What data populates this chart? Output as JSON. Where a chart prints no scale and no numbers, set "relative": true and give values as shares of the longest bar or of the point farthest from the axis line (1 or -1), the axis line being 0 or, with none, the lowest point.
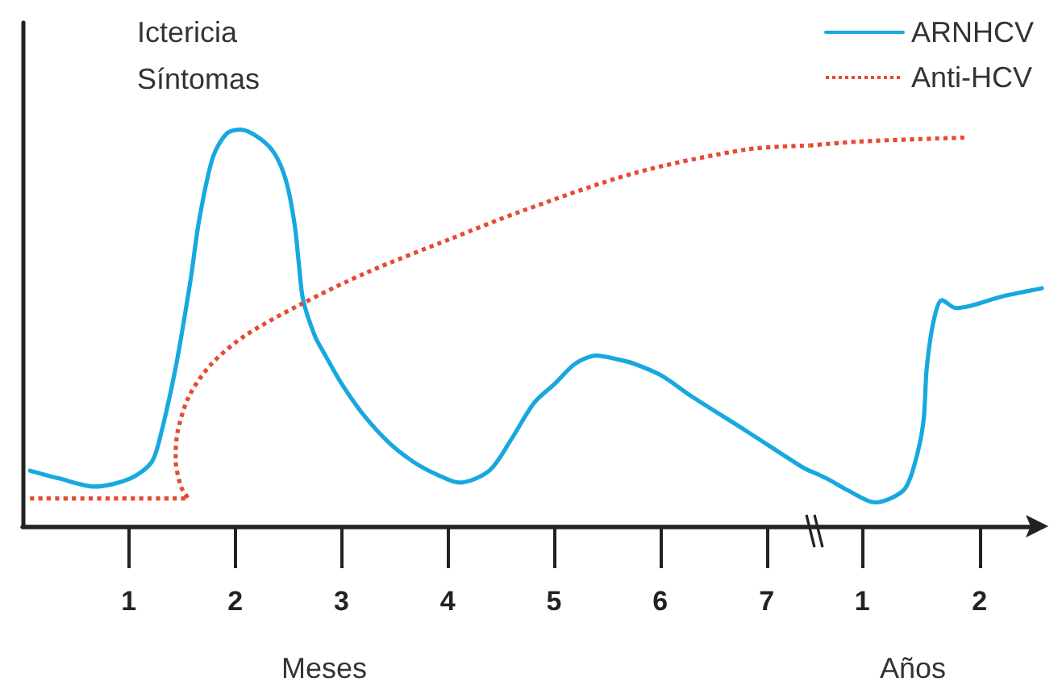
{
  "chart_data": {
    "type": "line",
    "relative": true,
    "tick_labels": "x",
    "marker": "none",
    "legend": "top right",
    "xlabel": "Meses",
    "x2label": "Años",
    "annotations": [
      "Ictericia",
      "Síntomas"
    ],
    "xlim": [
      0,
      9.59
    ],
    "xticks": [
      1,
      2,
      3,
      4,
      5,
      6,
      7
    ],
    "x2lim": [
      -6.15,
      2.53
    ],
    "x2ticks": [
      1,
      2
    ],
    "series": [
      {
        "name": "ARNHCV",
        "color": "#18a8e0",
        "line_style": "solid",
        "x": [
          0.07,
          0.35,
          0.68,
          1.01,
          1.21,
          1.29,
          1.44,
          1.58,
          1.66,
          1.79,
          1.92,
          2.05,
          2.22,
          2.37,
          2.48,
          2.56,
          2.6,
          2.64,
          2.75,
          2.85,
          3.0,
          3.21,
          3.45,
          3.69,
          3.9,
          4.11,
          4.39,
          4.6,
          4.81,
          5.01,
          5.2,
          5.4,
          5.61,
          5.75,
          6.01,
          6.28,
          6.81,
          7.33,
          7.4
        ],
        "values": [
          0.14,
          0.12,
          0.1,
          0.12,
          0.16,
          0.22,
          0.4,
          0.62,
          0.77,
          0.93,
          0.99,
          1,
          0.98,
          0.94,
          0.87,
          0.76,
          0.66,
          0.57,
          0.48,
          0.43,
          0.36,
          0.28,
          0.21,
          0.16,
          0.13,
          0.11,
          0.14,
          0.22,
          0.31,
          0.36,
          0.41,
          0.43,
          0.42,
          0.41,
          0.38,
          0.33,
          0.24,
          0.15,
          0.14
        ]
      },
      {
        "name": "Anti-HCV",
        "color": "#e84a2f",
        "line_style": "dotted",
        "x": [
          0.07,
          1.56,
          1.49,
          1.44,
          1.46,
          1.57,
          1.78,
          2.09,
          2.62,
          3.24,
          4.03,
          4.7,
          5.75,
          6.81,
          7.4
        ],
        "values": [
          0.07,
          0.07,
          0.1,
          0.17,
          0.24,
          0.33,
          0.41,
          0.48,
          0.56,
          0.64,
          0.725,
          0.795,
          0.89,
          0.95,
          0.96
        ]
      },
      {
        "color": "#18a8e0",
        "line_style": "solid",
        "axis": "x2",
        "x": [
          0.55,
          0.7,
          0.88,
          1.11,
          1.35,
          1.44,
          1.52,
          1.55,
          1.61,
          1.68,
          1.8,
          2.2,
          2.53
        ],
        "values": [
          0.14,
          0.12,
          0.09,
          0.06,
          0.09,
          0.15,
          0.26,
          0.4,
          0.52,
          0.57,
          0.55,
          0.58,
          0.6
        ]
      },
      {
        "color": "#e84a2f",
        "line_style": "dotted",
        "axis": "x2",
        "x": [
          0.55,
          0.97,
          1.87
        ],
        "values": [
          0.96,
          0.97,
          0.98
        ]
      }
    ]
  }
}
